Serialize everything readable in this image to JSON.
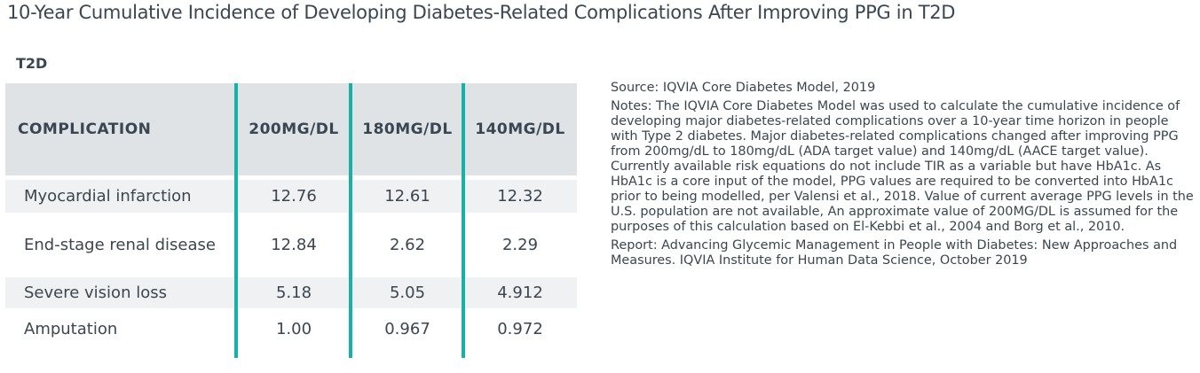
{
  "title": "10-Year Cumulative Incidence of Developing Diabetes-Related Complications After Improving PPG in T2D",
  "table_label": "T2D",
  "table": {
    "headers": [
      "COMPLICATION",
      "200MG/DL",
      "180MG/DL",
      "140MG/DL"
    ],
    "rows": [
      [
        "Myocardial infarction",
        "12.76",
        "12.61",
        "12.32"
      ],
      [
        "End-stage renal disease",
        "12.84",
        "2.62",
        "2.29"
      ],
      [
        "Severe vision loss",
        "5.18",
        "5.05",
        "4.912"
      ],
      [
        "Amputation",
        "1.00",
        "0.967",
        "0.972"
      ]
    ]
  },
  "notes": {
    "source": "Source: IQVIA Core Diabetes Model, 2019",
    "notes": "Notes: The IQVIA Core Diabetes Model was used to calculate the cumulative incidence of developing major diabetes-related complications over a 10-year time horizon in people with Type 2 diabetes. Major diabetes-related complications changed after improving PPG from 200mg/dL to 180mg/dL (ADA target value) and 140mg/dL (AACE target value). Currently available risk equations do not include TIR as a variable but have HbA1c. As HbA1c is a core input of the model, PPG values are required to be converted into HbA1c prior to being modelled, per Valensi et al., 2018. Value of current average PPG levels in the U.S. population are not available, An approximate value of 200MG/DL is assumed for the purposes of this calculation based on El-Kebbi et al., 2004 and Borg et al., 2010.",
    "report": "Report: Advancing Glycemic Management in People with Diabetes: New Approaches and Measures. IQVIA Institute for Human Data Science, October 2019"
  },
  "colors": {
    "accent": "#1ab0a6",
    "header_bg": "#dfe3e6",
    "row_bg": "#eff1f3",
    "text": "#3b4650"
  }
}
